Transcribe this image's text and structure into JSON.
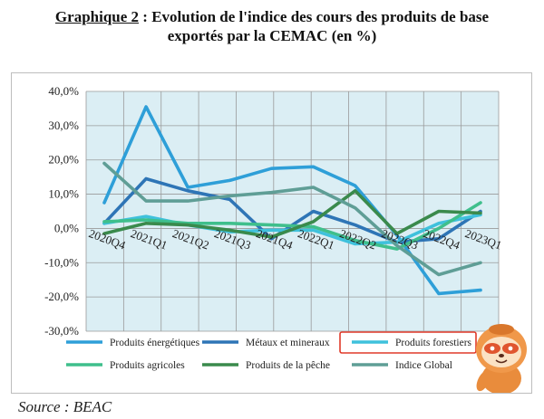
{
  "title": {
    "label": "Graphique 2",
    "sep": " : ",
    "line1": "Evolution de l'indice des cours des produits de base",
    "line2": "exportés par la CEMAC (en %)"
  },
  "source": "Source : BEAC",
  "chart_data": {
    "type": "line",
    "categories": [
      "2020Q4",
      "2021Q1",
      "2021Q2",
      "2021Q3",
      "2021Q4",
      "2022Q1",
      "2022Q2",
      "2022Q3",
      "2022Q4",
      "2023Q1"
    ],
    "y_ticks": [
      "40,0%",
      "30,0%",
      "20,0%",
      "10,0%",
      "0,0%",
      "-10,0%",
      "-20,0%",
      "-30,0%"
    ],
    "ylim": [
      -30,
      40
    ],
    "grid": true,
    "legend_position": "bottom",
    "plot_background": "#dbeef4",
    "highlighted_legend_entry": "Produits forestiers",
    "series": [
      {
        "name": "Produits énergétiques",
        "color": "#2e9fd8",
        "values": [
          7.5,
          35.5,
          12,
          14,
          17.5,
          18,
          12.5,
          -2,
          -19,
          -18
        ]
      },
      {
        "name": "Métaux et mineraux",
        "color": "#2e75b6",
        "values": [
          1.5,
          14.5,
          11,
          8.5,
          -3,
          5,
          1,
          -4,
          -3,
          5
        ]
      },
      {
        "name": "Produits forestiers",
        "color": "#3fc1dc",
        "values": [
          1.5,
          3.5,
          1,
          -1,
          -0.5,
          -0.5,
          -4.5,
          -4,
          1.5,
          4
        ]
      },
      {
        "name": "Produits agricoles",
        "color": "#3fbf8c",
        "values": [
          2,
          2.5,
          1.5,
          1.5,
          1,
          0.5,
          -3.5,
          -6,
          0,
          7.5
        ]
      },
      {
        "name": "Produits de la pêche",
        "color": "#3a8a4c",
        "values": [
          -1.5,
          1.5,
          1,
          -0.5,
          -2.5,
          2,
          11,
          -1.5,
          5,
          4.5
        ]
      },
      {
        "name": "Indice Global",
        "color": "#5f9e96",
        "values": [
          19,
          8,
          8,
          9.5,
          10.5,
          12,
          6,
          -5,
          -13.5,
          -10
        ]
      }
    ]
  }
}
